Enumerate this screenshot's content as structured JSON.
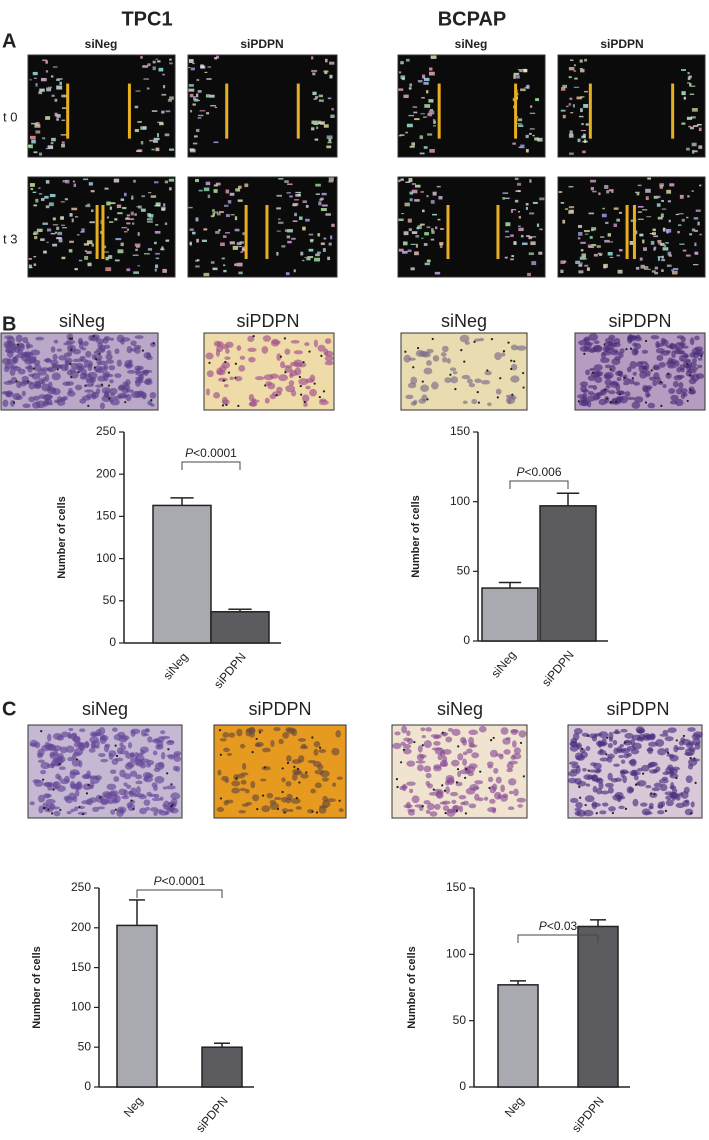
{
  "figure": {
    "columns": [
      "TPC1",
      "BCPAP"
    ],
    "panels": [
      "A",
      "B",
      "C"
    ],
    "panel_a": {
      "labels": [
        "siNeg",
        "siPDPN",
        "siNeg",
        "siPDPN"
      ],
      "rows": [
        "t 0",
        "t 3"
      ]
    },
    "panel_b": {
      "labels": [
        "siNeg",
        "siPDPN",
        "siNeg",
        "siPDPN"
      ]
    },
    "panel_c": {
      "labels": [
        "siNeg",
        "siPDPN",
        "siNeg",
        "siPDPN"
      ]
    }
  },
  "chart_data": [
    {
      "type": "bar",
      "ylabel": "Number of cells",
      "categories": [
        "siNeg",
        "siPDPN"
      ],
      "values": [
        163,
        37
      ],
      "errors": [
        9,
        3
      ],
      "colors": [
        "#a9a9b0",
        "#5c5c60"
      ],
      "ylim": [
        0,
        250
      ],
      "yticks": [
        0,
        50,
        100,
        150,
        200,
        250
      ],
      "annotation": "P<0.0001"
    },
    {
      "type": "bar",
      "ylabel": "Number of cells",
      "categories": [
        "siNeg",
        "siPDPN"
      ],
      "values": [
        38,
        97
      ],
      "errors": [
        4,
        9
      ],
      "colors": [
        "#a9a9b0",
        "#5c5c60"
      ],
      "ylim": [
        0,
        150
      ],
      "yticks": [
        0,
        50,
        100,
        150
      ],
      "annotation": "P<0.006"
    },
    {
      "type": "bar",
      "ylabel": "Number of cells",
      "categories": [
        "Neg",
        "siPDPN"
      ],
      "values": [
        203,
        50
      ],
      "errors": [
        32,
        5
      ],
      "colors": [
        "#a9a9b0",
        "#5c5c60"
      ],
      "ylim": [
        0,
        250
      ],
      "yticks": [
        0,
        50,
        100,
        150,
        200,
        250
      ],
      "annotation": "P<0.0001"
    },
    {
      "type": "bar",
      "ylabel": "Number of cells",
      "categories": [
        "Neg",
        "siPDPN"
      ],
      "values": [
        77,
        121
      ],
      "errors": [
        3,
        5
      ],
      "colors": [
        "#a9a9b0",
        "#5c5c60"
      ],
      "ylim": [
        0,
        150
      ],
      "yticks": [
        0,
        50,
        100,
        150
      ],
      "annotation": "P<0.03"
    }
  ]
}
